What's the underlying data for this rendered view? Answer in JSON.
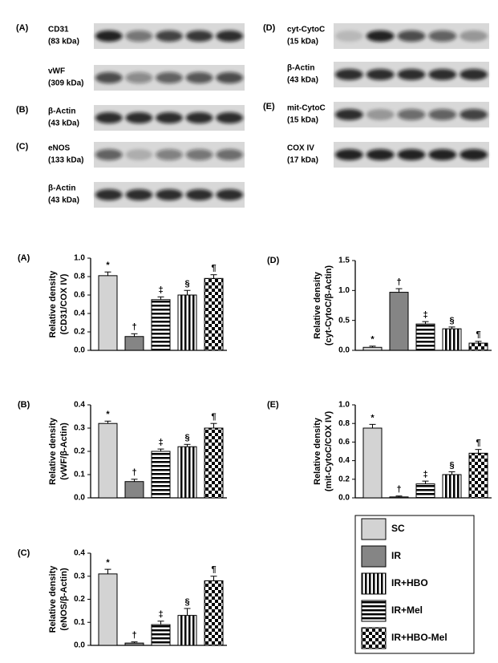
{
  "blots": {
    "left": [
      {
        "panel": "(A)",
        "protein": "CD31",
        "size": "(83 kDa)"
      },
      {
        "protein": "vWF",
        "size": "(309 kDa)"
      },
      {
        "panel": "(B)",
        "protein": "β-Actin",
        "size": "(43 kDa)"
      },
      {
        "panel": "(C)",
        "protein": "eNOS",
        "size": "(133 kDa)"
      },
      {
        "protein": "β-Actin",
        "size": "(43 kDa)"
      }
    ],
    "right": [
      {
        "panel": "(D)",
        "protein": "cyt-CytoC",
        "size": "(15 kDa)"
      },
      {
        "protein": "β-Actin",
        "size": "(43 kDa)"
      },
      {
        "panel": "(E)",
        "protein": "mit-CytoC",
        "size": "(15 kDa)"
      },
      {
        "protein": "COX IV",
        "size": "(17 kDa)"
      }
    ]
  },
  "legend": [
    {
      "name": "SC",
      "pattern": "light"
    },
    {
      "name": "IR",
      "pattern": "dark"
    },
    {
      "name": "IR+HBO",
      "pattern": "vstripe"
    },
    {
      "name": "IR+Mel",
      "pattern": "hstripe"
    },
    {
      "name": "IR+HBO-Mel",
      "pattern": "checker"
    }
  ],
  "chart_data": [
    {
      "type": "bar",
      "label": "(A)",
      "ylabel": [
        "Relative density",
        "(CD31/COX IV)"
      ],
      "categories": [
        "SC",
        "IR",
        "IR+Mel",
        "IR+HBO",
        "IR+HBO-Mel"
      ],
      "values": [
        0.81,
        0.15,
        0.55,
        0.6,
        0.78
      ],
      "errors": [
        0.04,
        0.03,
        0.03,
        0.05,
        0.04
      ],
      "annotations": [
        "*",
        "†",
        "‡",
        "§",
        "¶"
      ],
      "ylim": [
        0,
        1.0
      ],
      "yticks": [
        {
          "value": 0,
          "label": "0.0"
        },
        0.2,
        0.4,
        0.6,
        0.8,
        {
          "value": 1,
          "label": "1.0"
        }
      ]
    },
    {
      "type": "bar",
      "label": "(D)",
      "ylabel": [
        "Relative density",
        "(cyt-CytoC/β-Actin)"
      ],
      "categories": [
        "SC",
        "IR",
        "IR+Mel",
        "IR+HBO",
        "IR+HBO-Mel"
      ],
      "values": [
        0.05,
        0.97,
        0.44,
        0.36,
        0.12
      ],
      "errors": [
        0.02,
        0.06,
        0.04,
        0.03,
        0.03
      ],
      "annotations": [
        "*",
        "†",
        "‡",
        "§",
        "¶"
      ],
      "ylim": [
        0,
        1.5
      ],
      "yticks": [
        {
          "value": 0,
          "label": "0.0"
        },
        0.5,
        {
          "value": 1,
          "label": "1.0"
        },
        1.5
      ]
    },
    {
      "type": "bar",
      "label": "(B)",
      "ylabel": [
        "Relative density",
        "(vWF/β-Actin)"
      ],
      "categories": [
        "SC",
        "IR",
        "IR+Mel",
        "IR+HBO",
        "IR+HBO-Mel"
      ],
      "values": [
        0.32,
        0.07,
        0.2,
        0.22,
        0.3
      ],
      "errors": [
        0.01,
        0.01,
        0.01,
        0.01,
        0.02
      ],
      "annotations": [
        "*",
        "†",
        "‡",
        "§",
        "¶"
      ],
      "ylim": [
        0,
        0.4
      ],
      "yticks": [
        {
          "value": 0,
          "label": "0.0"
        },
        0.1,
        0.2,
        0.3,
        0.4
      ]
    },
    {
      "type": "bar",
      "label": "(E)",
      "ylabel": [
        "Relative density",
        "(mit-CytoC/COX IV)"
      ],
      "categories": [
        "SC",
        "IR",
        "IR+Mel",
        "IR+HBO",
        "IR+HBO-Mel"
      ],
      "values": [
        0.75,
        0.01,
        0.15,
        0.25,
        0.48
      ],
      "errors": [
        0.04,
        0.01,
        0.03,
        0.03,
        0.04
      ],
      "annotations": [
        "*",
        "†",
        "‡",
        "§",
        "¶"
      ],
      "ylim": [
        0,
        1.0
      ],
      "yticks": [
        {
          "value": 0,
          "label": "0.0"
        },
        0.2,
        0.4,
        0.6,
        0.8,
        {
          "value": 1,
          "label": "1.0"
        }
      ]
    },
    {
      "type": "bar",
      "label": "(C)",
      "ylabel": [
        "Relative density",
        "(eNOS/β-Actin)"
      ],
      "categories": [
        "SC",
        "IR",
        "IR+Mel",
        "IR+HBO",
        "IR+HBO-Mel"
      ],
      "values": [
        0.31,
        0.01,
        0.09,
        0.13,
        0.28
      ],
      "errors": [
        0.02,
        0.005,
        0.015,
        0.03,
        0.02
      ],
      "annotations": [
        "*",
        "†",
        "‡",
        "§",
        "¶"
      ],
      "ylim": [
        0,
        0.4
      ],
      "yticks": [
        {
          "value": 0,
          "label": "0.0"
        },
        0.1,
        0.2,
        0.3,
        0.4
      ]
    }
  ]
}
